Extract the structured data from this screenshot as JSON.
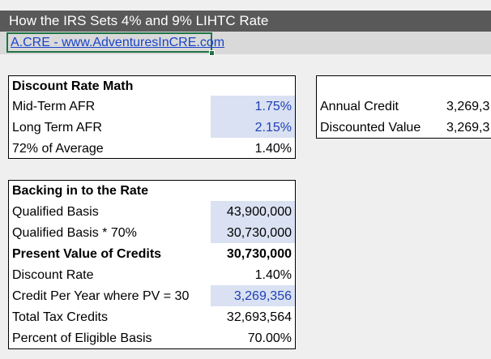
{
  "title": "How the IRS Sets 4% and 9% LIHTC Rate",
  "link": "A.CRE - www.AdventuresInCRE.com",
  "discount_rate_math": {
    "header": "Discount Rate Math",
    "rows": [
      {
        "label": "Mid-Term AFR",
        "value": "1.75%"
      },
      {
        "label": "Long Term AFR",
        "value": "2.15%"
      },
      {
        "label": "72% of Average",
        "value": "1.40%"
      }
    ]
  },
  "credit_box": {
    "rows": [
      {
        "label": "Annual Credit",
        "value": "3,269,3"
      },
      {
        "label": "Discounted Value",
        "value": "3,269,3"
      }
    ]
  },
  "backing_in": {
    "header": "Backing in to the Rate",
    "rows": [
      {
        "label": "Qualified Basis",
        "value": "43,900,000"
      },
      {
        "label": "Qualified Basis * 70%",
        "value": "30,730,000"
      },
      {
        "label": "Present Value of Credits",
        "value": "30,730,000"
      },
      {
        "label": "Discount Rate",
        "value": "1.40%"
      },
      {
        "label": "Credit Per Year where PV = 30",
        "value": "3,269,356"
      },
      {
        "label": "Total Tax Credits",
        "value": "32,693,564"
      },
      {
        "label": "Percent of Eligible Basis",
        "value": "70.00%"
      }
    ]
  },
  "colors": {
    "title_bg": "#595959",
    "input_fill": "#d9e1f2",
    "input_text": "#1f3fb5",
    "selection": "#217346",
    "link": "#1a44c9"
  }
}
